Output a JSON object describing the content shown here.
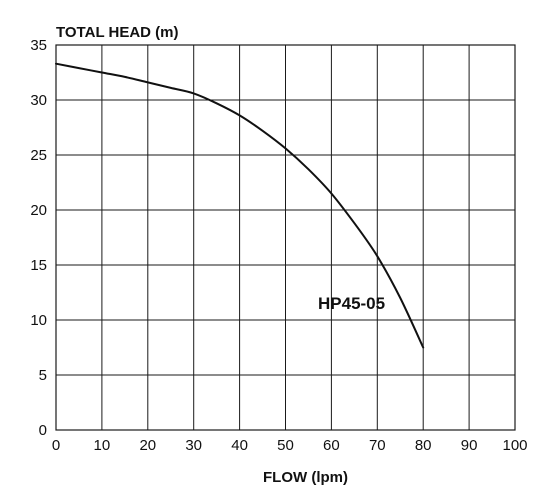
{
  "chart_data": {
    "type": "line",
    "title": "",
    "xlabel": "FLOW (lpm)",
    "ylabel": "TOTAL HEAD (m)",
    "xlim": [
      0,
      100
    ],
    "ylim": [
      0,
      35
    ],
    "x_ticks": [
      0,
      10,
      20,
      30,
      40,
      50,
      60,
      70,
      80,
      90,
      100
    ],
    "y_ticks": [
      0,
      5,
      10,
      15,
      20,
      25,
      30,
      35
    ],
    "grid": true,
    "series": [
      {
        "name": "HP45-05",
        "color": "#111111",
        "x": [
          0,
          5,
          10,
          15,
          20,
          25,
          30,
          35,
          40,
          45,
          50,
          55,
          60,
          65,
          70,
          75,
          80
        ],
        "y": [
          33.3,
          32.9,
          32.5,
          32.1,
          31.6,
          31.1,
          30.6,
          29.7,
          28.6,
          27.2,
          25.6,
          23.7,
          21.5,
          18.8,
          15.8,
          12.0,
          7.5
        ]
      }
    ]
  }
}
